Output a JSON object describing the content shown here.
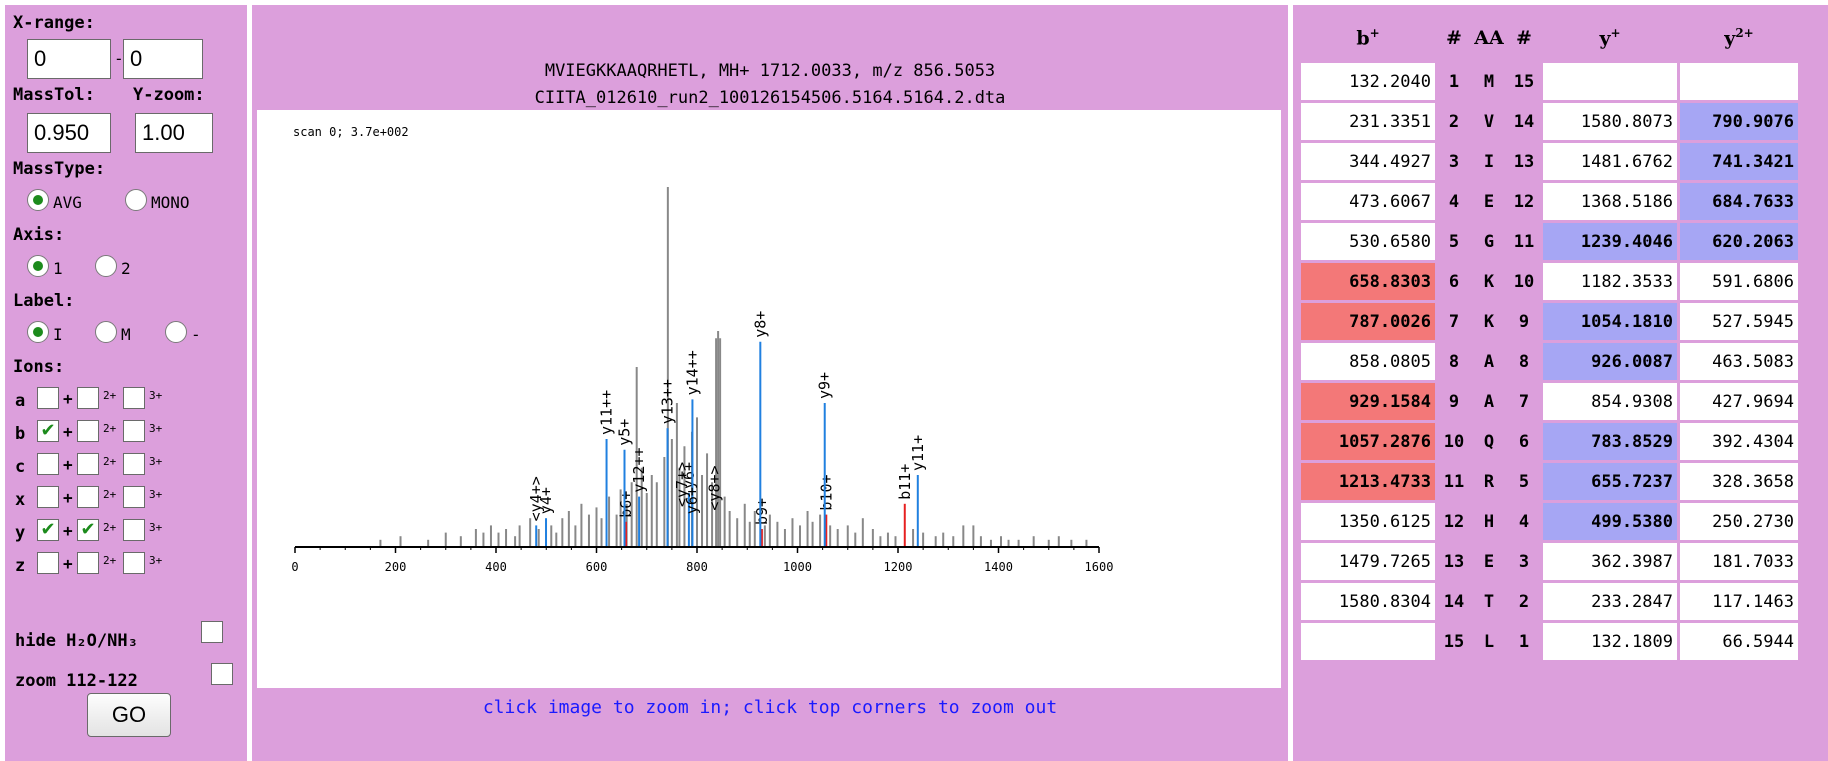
{
  "left_panel": {
    "xrange_label": "X-range:",
    "xrange_from": "0",
    "xrange_dash": "-",
    "xrange_to": "0",
    "masstol_label": "MassTol:",
    "yzoom_label": "Y-zoom:",
    "masstol_value": "0.950",
    "yzoom_value": "1.00",
    "masstype_label": "MassType:",
    "masstype_avg": "AVG",
    "masstype_mono": "MONO",
    "axis_label": "Axis:",
    "axis_1": "1",
    "axis_2": "2",
    "label_label": "Label:",
    "label_i": "I",
    "label_m": "M",
    "label_dash": "-",
    "ions_label": "Ions:",
    "ion_rows": [
      {
        "name": "a",
        "c1": false,
        "c2": false,
        "c3": false
      },
      {
        "name": "b",
        "c1": true,
        "c2": false,
        "c3": false
      },
      {
        "name": "c",
        "c1": false,
        "c2": false,
        "c3": false
      },
      {
        "name": "x",
        "c1": false,
        "c2": false,
        "c3": false
      },
      {
        "name": "y",
        "c1": true,
        "c2": true,
        "c3": false
      },
      {
        "name": "z",
        "c1": false,
        "c2": false,
        "c3": false
      }
    ],
    "plus": "+",
    "charge2": "2+",
    "charge3": "3+",
    "hide_label": "hide H₂O/NH₃",
    "zoom_label": "zoom 112-122",
    "go_label": "GO"
  },
  "center": {
    "title_line1": "MVIEGKKAAQRHETL, MH+ 1712.0033, m/z 856.5053",
    "title_line2": "CIITA_012610_run2_100126154506.5164.5164.2.dta",
    "scan_text": "scan 0; 3.7e+002",
    "hint": "click image to zoom in; click top corners to zoom out"
  },
  "chart_data": {
    "type": "bar",
    "title": "scan 0; 3.7e+002",
    "xlim": [
      0,
      1600
    ],
    "x_ticks": [
      "0",
      "200",
      "400",
      "600",
      "800",
      "1000",
      "1200",
      "1400",
      "1600"
    ],
    "ylim": [
      0,
      100
    ],
    "colors": {
      "background_peaks": "#888888",
      "b_ions": "#e62020",
      "y_ions": "#2080e0"
    },
    "background_peaks": [
      [
        170,
        2
      ],
      [
        210,
        3
      ],
      [
        265,
        2
      ],
      [
        300,
        4
      ],
      [
        330,
        3
      ],
      [
        360,
        5
      ],
      [
        375,
        4
      ],
      [
        390,
        6
      ],
      [
        405,
        4
      ],
      [
        420,
        5
      ],
      [
        438,
        3
      ],
      [
        447,
        6
      ],
      [
        468,
        8
      ],
      [
        485,
        5
      ],
      [
        510,
        6
      ],
      [
        520,
        4
      ],
      [
        532,
        8
      ],
      [
        545,
        10
      ],
      [
        558,
        6
      ],
      [
        570,
        12
      ],
      [
        585,
        9
      ],
      [
        600,
        11
      ],
      [
        610,
        8
      ],
      [
        625,
        14
      ],
      [
        640,
        9
      ],
      [
        648,
        16
      ],
      [
        660,
        12
      ],
      [
        670,
        18
      ],
      [
        680,
        50
      ],
      [
        690,
        22
      ],
      [
        700,
        15
      ],
      [
        710,
        20
      ],
      [
        720,
        18
      ],
      [
        735,
        25
      ],
      [
        742,
        100
      ],
      [
        750,
        30
      ],
      [
        760,
        40
      ],
      [
        765,
        22
      ],
      [
        775,
        28
      ],
      [
        790,
        32
      ],
      [
        800,
        36
      ],
      [
        810,
        20
      ],
      [
        820,
        26
      ],
      [
        830,
        18
      ],
      [
        838,
        58
      ],
      [
        842,
        60
      ],
      [
        846,
        58
      ],
      [
        855,
        14
      ],
      [
        865,
        10
      ],
      [
        880,
        8
      ],
      [
        895,
        12
      ],
      [
        905,
        7
      ],
      [
        915,
        10
      ],
      [
        935,
        6
      ],
      [
        945,
        9
      ],
      [
        960,
        7
      ],
      [
        975,
        5
      ],
      [
        990,
        8
      ],
      [
        1005,
        6
      ],
      [
        1020,
        10
      ],
      [
        1030,
        7
      ],
      [
        1045,
        9
      ],
      [
        1065,
        6
      ],
      [
        1080,
        5
      ],
      [
        1100,
        6
      ],
      [
        1115,
        4
      ],
      [
        1130,
        8
      ],
      [
        1150,
        5
      ],
      [
        1165,
        3
      ],
      [
        1180,
        4
      ],
      [
        1195,
        3
      ],
      [
        1230,
        5
      ],
      [
        1250,
        4
      ],
      [
        1275,
        3
      ],
      [
        1290,
        4
      ],
      [
        1310,
        3
      ],
      [
        1330,
        6
      ],
      [
        1350,
        6
      ],
      [
        1365,
        3
      ],
      [
        1385,
        2
      ],
      [
        1405,
        3
      ],
      [
        1420,
        2
      ],
      [
        1440,
        2
      ],
      [
        1470,
        3
      ],
      [
        1500,
        2
      ],
      [
        1520,
        3
      ],
      [
        1545,
        2
      ],
      [
        1575,
        2
      ]
    ],
    "b_ions": [
      {
        "label": "b6+",
        "x": 658.83,
        "y": 7
      },
      {
        "label": "b9+",
        "x": 929.16,
        "y": 5
      },
      {
        "label": "b10+",
        "x": 1057.29,
        "y": 9
      },
      {
        "label": "b11+",
        "x": 1213.47,
        "y": 12
      }
    ],
    "y_ions": [
      {
        "label": "<y4+>",
        "x": 480,
        "y": 6
      },
      {
        "label": "y4+",
        "x": 499.54,
        "y": 8
      },
      {
        "label": "y11++",
        "x": 620,
        "y": 30
      },
      {
        "label": "y5+",
        "x": 655.72,
        "y": 27
      },
      {
        "label": "y12++",
        "x": 684.76,
        "y": 14
      },
      {
        "label": "y13++",
        "x": 741.34,
        "y": 33
      },
      {
        "label": "y6+",
        "x": 783.85,
        "y": 15
      },
      {
        "label": "y14++",
        "x": 790.91,
        "y": 41
      },
      {
        "label": "y8+",
        "x": 926.01,
        "y": 57
      },
      {
        "label": "y9+",
        "x": 1054.18,
        "y": 40
      },
      {
        "label": "y11+",
        "x": 1239.4,
        "y": 20
      }
    ],
    "overlap_labels": [
      {
        "label": "<y7+>",
        "x": 770,
        "y": 10
      },
      {
        "label": "y6+",
        "x": 790,
        "y": 8
      },
      {
        "label": "<y8+>",
        "x": 835,
        "y": 9
      }
    ]
  },
  "fragment_table": {
    "headers": {
      "b": "b",
      "b_sup": "+",
      "num1": "#",
      "aa": "AA",
      "num2": "#",
      "y": "y",
      "y_sup": "+",
      "y2": "y",
      "y2_sup": "2+"
    },
    "rows": [
      {
        "b": "132.2040",
        "n1": "1",
        "aa": "M",
        "n2": "15",
        "y": "",
        "y2": "",
        "bh": false,
        "yh": false,
        "y2h": false
      },
      {
        "b": "231.3351",
        "n1": "2",
        "aa": "V",
        "n2": "14",
        "y": "1580.8073",
        "y2": "790.9076",
        "bh": false,
        "yh": false,
        "y2h": true
      },
      {
        "b": "344.4927",
        "n1": "3",
        "aa": "I",
        "n2": "13",
        "y": "1481.6762",
        "y2": "741.3421",
        "bh": false,
        "yh": false,
        "y2h": true
      },
      {
        "b": "473.6067",
        "n1": "4",
        "aa": "E",
        "n2": "12",
        "y": "1368.5186",
        "y2": "684.7633",
        "bh": false,
        "yh": false,
        "y2h": true
      },
      {
        "b": "530.6580",
        "n1": "5",
        "aa": "G",
        "n2": "11",
        "y": "1239.4046",
        "y2": "620.2063",
        "bh": false,
        "yh": true,
        "y2h": true
      },
      {
        "b": "658.8303",
        "n1": "6",
        "aa": "K",
        "n2": "10",
        "y": "1182.3533",
        "y2": "591.6806",
        "bh": true,
        "yh": false,
        "y2h": false
      },
      {
        "b": "787.0026",
        "n1": "7",
        "aa": "K",
        "n2": "9",
        "y": "1054.1810",
        "y2": "527.5945",
        "bh": true,
        "yh": true,
        "y2h": false
      },
      {
        "b": "858.0805",
        "n1": "8",
        "aa": "A",
        "n2": "8",
        "y": "926.0087",
        "y2": "463.5083",
        "bh": false,
        "yh": true,
        "y2h": false
      },
      {
        "b": "929.1584",
        "n1": "9",
        "aa": "A",
        "n2": "7",
        "y": "854.9308",
        "y2": "427.9694",
        "bh": true,
        "yh": false,
        "y2h": false
      },
      {
        "b": "1057.2876",
        "n1": "10",
        "aa": "Q",
        "n2": "6",
        "y": "783.8529",
        "y2": "392.4304",
        "bh": true,
        "yh": true,
        "y2h": false
      },
      {
        "b": "1213.4733",
        "n1": "11",
        "aa": "R",
        "n2": "5",
        "y": "655.7237",
        "y2": "328.3658",
        "bh": true,
        "yh": true,
        "y2h": false
      },
      {
        "b": "1350.6125",
        "n1": "12",
        "aa": "H",
        "n2": "4",
        "y": "499.5380",
        "y2": "250.2730",
        "bh": false,
        "yh": true,
        "y2h": false
      },
      {
        "b": "1479.7265",
        "n1": "13",
        "aa": "E",
        "n2": "3",
        "y": "362.3987",
        "y2": "181.7033",
        "bh": false,
        "yh": false,
        "y2h": false
      },
      {
        "b": "1580.8304",
        "n1": "14",
        "aa": "T",
        "n2": "2",
        "y": "233.2847",
        "y2": "117.1463",
        "bh": false,
        "yh": false,
        "y2h": false
      },
      {
        "b": "",
        "n1": "15",
        "aa": "L",
        "n2": "1",
        "y": "132.1809",
        "y2": "66.5944",
        "bh": false,
        "yh": false,
        "y2h": false
      }
    ]
  }
}
